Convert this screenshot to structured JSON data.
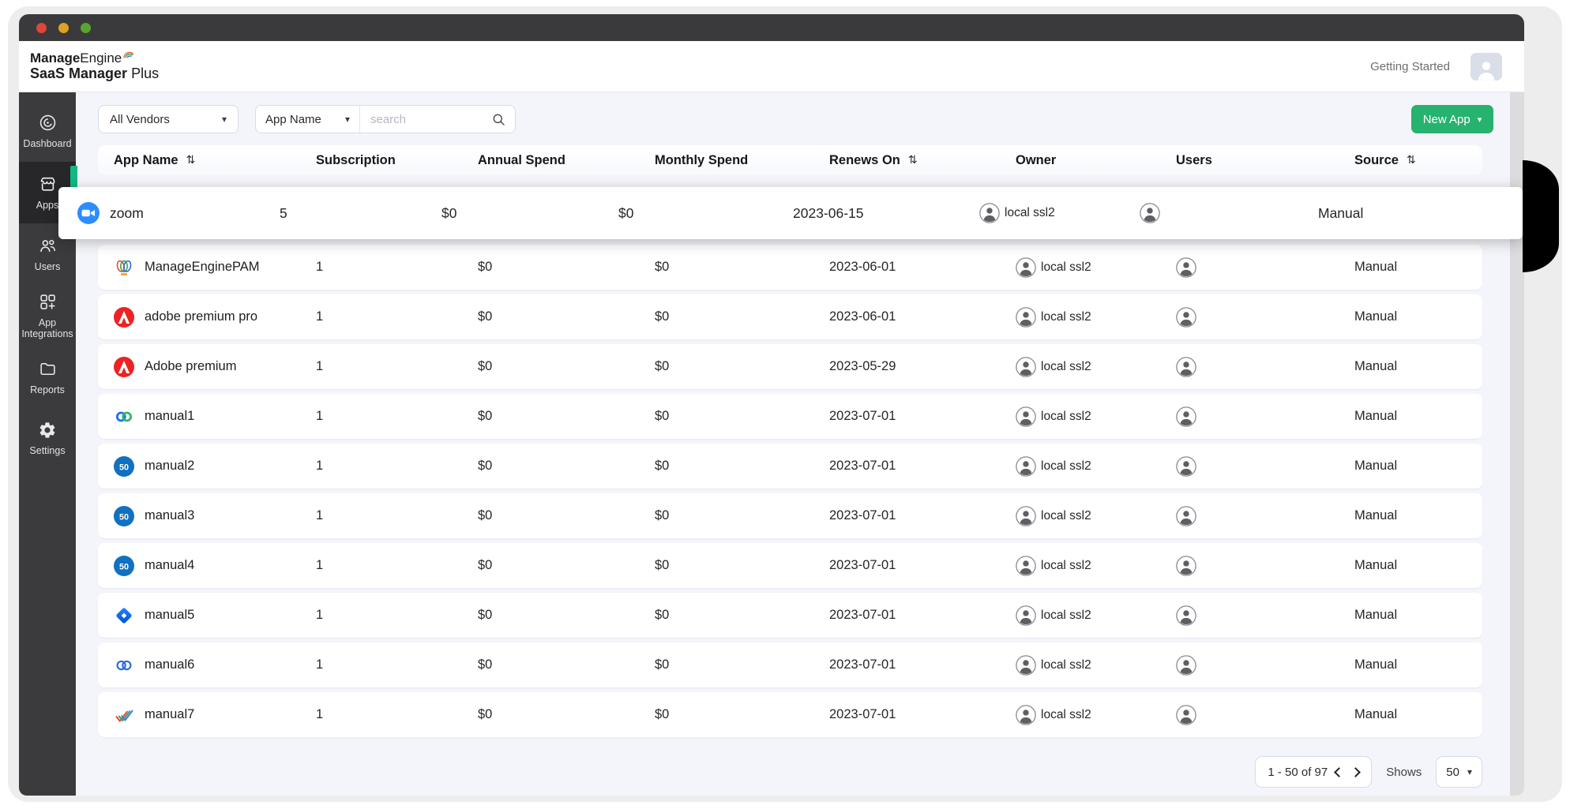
{
  "titlebar": {
    "buttons": [
      "close",
      "minimize",
      "maximize"
    ]
  },
  "brand": {
    "name_bold": "Manage",
    "name_rest": "Engine",
    "product_bold": "SaaS Manager",
    "product_rest": " Plus"
  },
  "header": {
    "getting_started_label": "Getting Started"
  },
  "sidebar": {
    "items": [
      {
        "label": "Dashboard",
        "active": false
      },
      {
        "label": "Apps",
        "active": true
      },
      {
        "label": "Users",
        "active": false
      },
      {
        "label": "App Integrations",
        "active": false
      },
      {
        "label": "Reports",
        "active": false
      },
      {
        "label": "Settings",
        "active": false
      }
    ]
  },
  "filters": {
    "vendor_filter_value": "All Vendors",
    "search_category_value": "App Name",
    "search_placeholder": "search",
    "search_value": ""
  },
  "toolbar": {
    "new_app_label": "New App"
  },
  "table": {
    "columns": [
      {
        "label": "App Name",
        "sortable": true
      },
      {
        "label": "Subscription",
        "sortable": false
      },
      {
        "label": "Annual Spend",
        "sortable": false
      },
      {
        "label": "Monthly Spend",
        "sortable": false
      },
      {
        "label": "Renews On",
        "sortable": true
      },
      {
        "label": "Owner",
        "sortable": false
      },
      {
        "label": "Users",
        "sortable": false
      },
      {
        "label": "Source",
        "sortable": true
      }
    ],
    "rows": [
      {
        "app": "zoom",
        "icon": "zoom-video-icon",
        "subscription": "5",
        "annual": "$0",
        "monthly": "$0",
        "renews": "2023-06-15",
        "owner": "local ssl2",
        "source": "Manual",
        "highlighted": true
      },
      {
        "app": "ManageEnginePAM",
        "icon": "manageengine-pam-icon",
        "subscription": "1",
        "annual": "$0",
        "monthly": "$0",
        "renews": "2023-06-01",
        "owner": "local ssl2",
        "source": "Manual",
        "highlighted": false
      },
      {
        "app": "adobe premium pro",
        "icon": "adobe-icon",
        "subscription": "1",
        "annual": "$0",
        "monthly": "$0",
        "renews": "2023-06-01",
        "owner": "local ssl2",
        "source": "Manual",
        "highlighted": false
      },
      {
        "app": "Adobe premium",
        "icon": "adobe-icon",
        "subscription": "1",
        "annual": "$0",
        "monthly": "$0",
        "renews": "2023-05-29",
        "owner": "local ssl2",
        "source": "Manual",
        "highlighted": false
      },
      {
        "app": "manual1",
        "icon": "webex-loop-icon",
        "subscription": "1",
        "annual": "$0",
        "monthly": "$0",
        "renews": "2023-07-01",
        "owner": "local ssl2",
        "source": "Manual",
        "highlighted": false
      },
      {
        "app": "manual2",
        "icon": "blue-circle-app-icon",
        "subscription": "1",
        "annual": "$0",
        "monthly": "$0",
        "renews": "2023-07-01",
        "owner": "local ssl2",
        "source": "Manual",
        "highlighted": false
      },
      {
        "app": "manual3",
        "icon": "blue-circle-app-icon",
        "subscription": "1",
        "annual": "$0",
        "monthly": "$0",
        "renews": "2023-07-01",
        "owner": "local ssl2",
        "source": "Manual",
        "highlighted": false
      },
      {
        "app": "manual4",
        "icon": "blue-circle-app-icon",
        "subscription": "1",
        "annual": "$0",
        "monthly": "$0",
        "renews": "2023-07-01",
        "owner": "local ssl2",
        "source": "Manual",
        "highlighted": false
      },
      {
        "app": "manual5",
        "icon": "jira-diamond-icon",
        "subscription": "1",
        "annual": "$0",
        "monthly": "$0",
        "renews": "2023-07-01",
        "owner": "local ssl2",
        "source": "Manual",
        "highlighted": false
      },
      {
        "app": "manual6",
        "icon": "double-ring-icon",
        "subscription": "1",
        "annual": "$0",
        "monthly": "$0",
        "renews": "2023-07-01",
        "owner": "local ssl2",
        "source": "Manual",
        "highlighted": false
      },
      {
        "app": "manual7",
        "icon": "multicolor-check-icon",
        "subscription": "1",
        "annual": "$0",
        "monthly": "$0",
        "renews": "2023-07-01",
        "owner": "local ssl2",
        "source": "Manual",
        "highlighted": false
      }
    ]
  },
  "pagination": {
    "range_label": "1 - 50 of 97",
    "shows_label": "Shows",
    "page_size_value": "50"
  },
  "colors": {
    "accent_green": "#27b26f",
    "highlight_blue": "#2D8CFF",
    "sidebar_bg": "#3b3b3d",
    "titlebar_bg": "#3a3a3c",
    "content_bg": "#f4f5fa",
    "active_indicator": "#12b884"
  }
}
